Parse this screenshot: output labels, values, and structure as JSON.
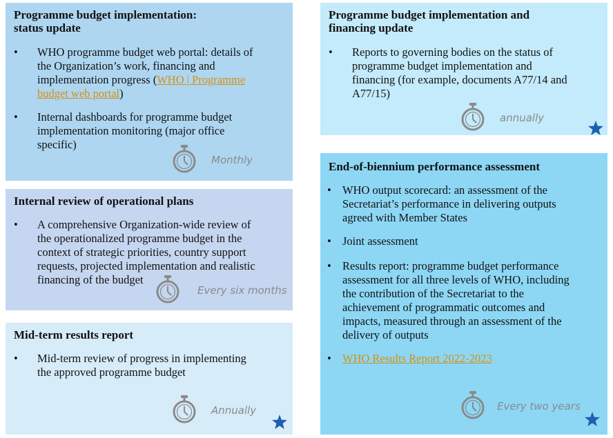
{
  "boxes": {
    "status_update": {
      "title_line1": "Programme budget implementation:",
      "title_line2": "status update",
      "item1_a": "WHO programme budget web portal: details of",
      "item1_b": "the Organization’s work, financing and",
      "item1_c_pre": "implementation progress (",
      "item1_link_a": "WHO | Programme",
      "item1_link_b": "budget web portal",
      "item1_d_post": ")",
      "item2_a": "Internal dashboards for programme budget",
      "item2_b": "implementation monitoring (major office",
      "item2_c": "specific)",
      "frequency": "Monthly",
      "color": "#aed6f1"
    },
    "operational_review": {
      "title": "Internal review of operational plans",
      "item1_a": "A comprehensive Organization-wide review of",
      "item1_b": "the operationalized programme budget in the",
      "item1_c": "context of strategic priorities, country support",
      "item1_d": "requests, projected implementation and realistic",
      "item1_e": "financing of the budget",
      "frequency": "Every six months",
      "color": "#c5d6f0"
    },
    "midterm": {
      "title": "Mid-term results report",
      "item1_a": "Mid-term review of progress in implementing",
      "item1_b": "the approved programme budget",
      "frequency": "Annually",
      "color": "#d6ecf8"
    },
    "financing_update": {
      "title_line1": "Programme budget implementation and",
      "title_line2": "financing update",
      "item1_a": "Reports to governing bodies on the status of",
      "item1_b": "programme budget implementation and",
      "item1_c": "financing (for example, documents A77/14 and",
      "item1_d": "A77/15)",
      "frequency": "annually",
      "color": "#c3ebfb"
    },
    "biennium": {
      "title": "End-of-biennium performance assessment",
      "item1_a": "WHO output scorecard: an assessment of the",
      "item1_b": "Secretariat’s performance in delivering outputs",
      "item1_c": "agreed with Member States",
      "item2": "Joint assessment",
      "item3_a": "Results report: programme budget performance",
      "item3_b": "assessment for all three levels of WHO, including",
      "item3_c": "the contribution of the Secretariat to the",
      "item3_d": "achievement of programmatic outcomes and",
      "item3_e": "impacts, measured through an assessment of the",
      "item3_f": "delivery of outputs",
      "item4_link": "WHO Results Report 2022-2023",
      "frequency": "Every two years",
      "color": "#8dd7f5"
    }
  },
  "bullet": "•",
  "icons": {
    "stopwatch": "stopwatch-icon",
    "star": "star-icon"
  },
  "colors": {
    "link": "#d4900e",
    "star": "#1f5fb0",
    "watch": "#8a8a8a"
  }
}
